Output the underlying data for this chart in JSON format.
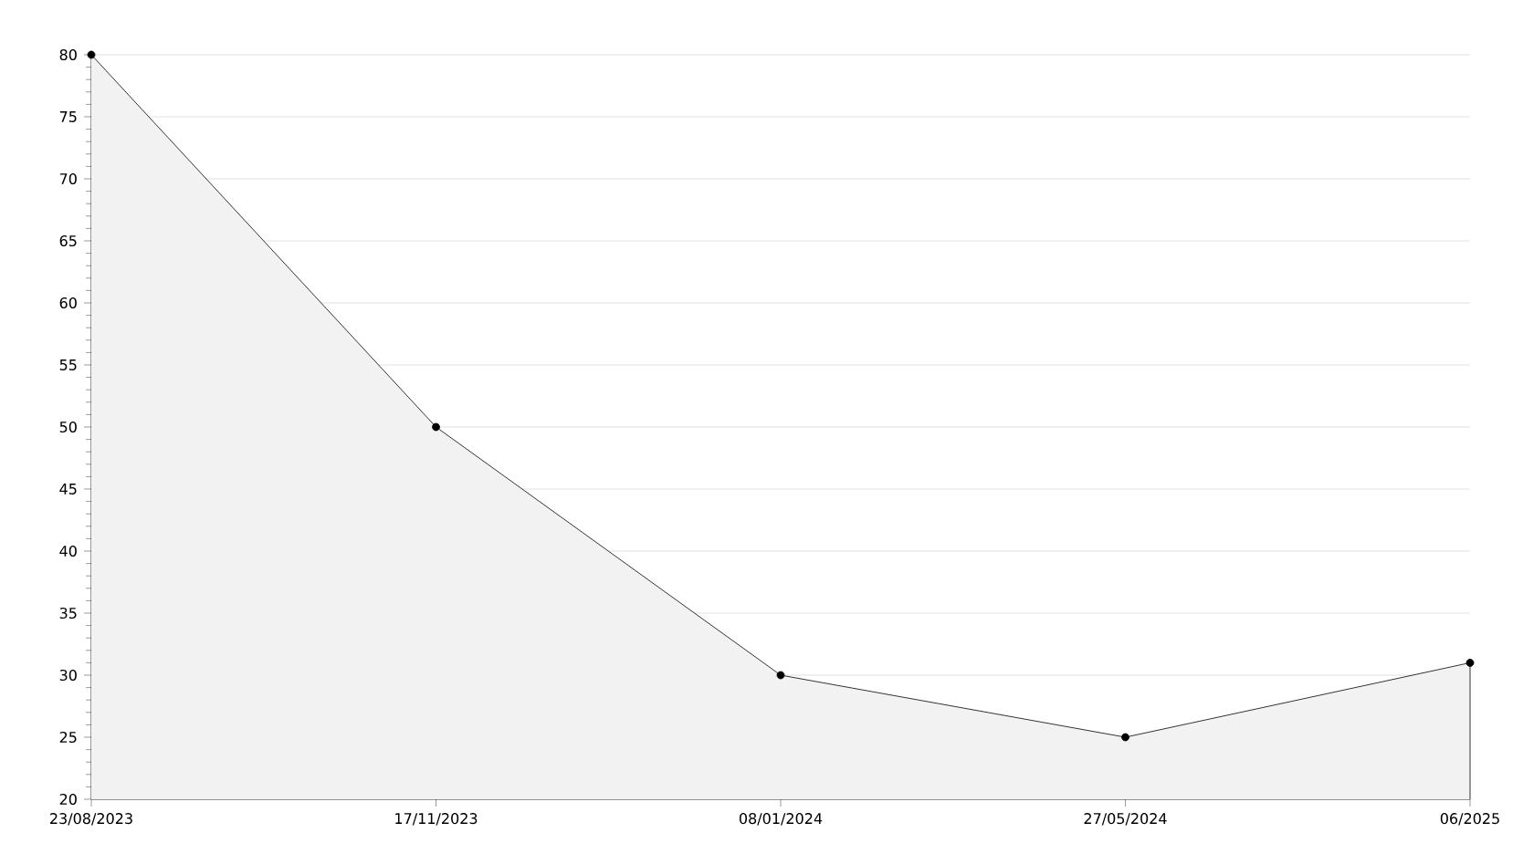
{
  "chart_data": {
    "type": "area",
    "categories": [
      "23/08/2023",
      "17/11/2023",
      "08/01/2024",
      "27/05/2024",
      "06/2025"
    ],
    "values": [
      80,
      50,
      30,
      25,
      31
    ],
    "color": "#f2f2f2",
    "ylim": [
      20,
      80
    ],
    "yticks": [
      20,
      25,
      30,
      35,
      40,
      45,
      50,
      55,
      60,
      65,
      70,
      75,
      80
    ],
    "grid": "y",
    "marker": "circle",
    "line_style": "solid"
  }
}
